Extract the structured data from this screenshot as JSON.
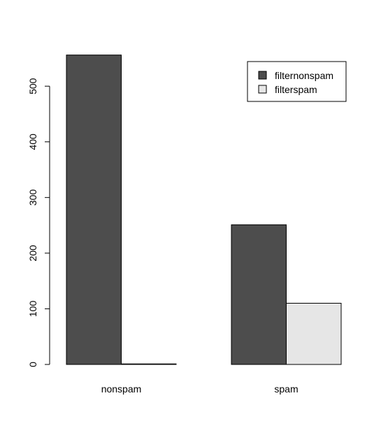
{
  "chart_data": {
    "type": "bar",
    "categories": [
      "nonspam",
      "spam"
    ],
    "series": [
      {
        "name": "filternonspam",
        "values": [
          556,
          251
        ],
        "color": "#4d4d4d"
      },
      {
        "name": "filterspam",
        "values": [
          1,
          110
        ],
        "color": "#e6e6e6"
      }
    ],
    "y_ticks": [
      0,
      100,
      200,
      300,
      400,
      500
    ],
    "ylim": [
      0,
      556
    ],
    "xlabel": "",
    "ylabel": "",
    "title": "",
    "legend_position": "top-right",
    "grid": false
  }
}
